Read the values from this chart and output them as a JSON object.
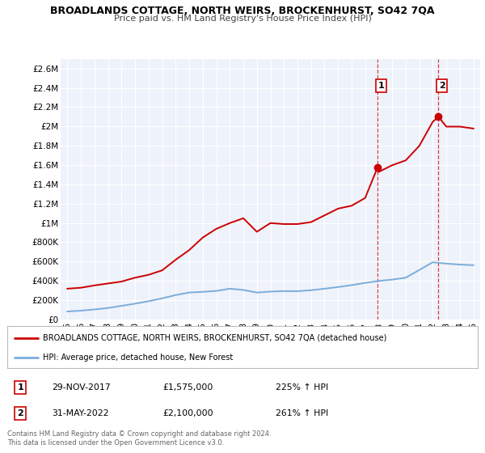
{
  "title": "BROADLANDS COTTAGE, NORTH WEIRS, BROCKENHURST, SO42 7QA",
  "subtitle": "Price paid vs. HM Land Registry's House Price Index (HPI)",
  "xlim": [
    1994.5,
    2025.5
  ],
  "ylim": [
    0,
    2700000
  ],
  "yticks": [
    0,
    200000,
    400000,
    600000,
    800000,
    1000000,
    1200000,
    1400000,
    1600000,
    1800000,
    2000000,
    2200000,
    2400000,
    2600000
  ],
  "ytick_labels": [
    "£0",
    "£200K",
    "£400K",
    "£600K",
    "£800K",
    "£1M",
    "£1.2M",
    "£1.4M",
    "£1.6M",
    "£1.8M",
    "£2M",
    "£2.2M",
    "£2.4M",
    "£2.6M"
  ],
  "marker1_x": 2017.92,
  "marker1_y": 1575000,
  "marker1_label": "1",
  "marker1_date": "29-NOV-2017",
  "marker1_price": "£1,575,000",
  "marker1_pct": "225% ↑ HPI",
  "marker2_x": 2022.42,
  "marker2_y": 2100000,
  "marker2_label": "2",
  "marker2_date": "31-MAY-2022",
  "marker2_price": "£2,100,000",
  "marker2_pct": "261% ↑ HPI",
  "line1_color": "#cc0000",
  "line2_color": "#7aaddb",
  "background_color": "#eef2fa",
  "legend_line1": "BROADLANDS COTTAGE, NORTH WEIRS, BROCKENHURST, SO42 7QA (detached house)",
  "legend_line2": "HPI: Average price, detached house, New Forest",
  "footer1": "Contains HM Land Registry data © Crown copyright and database right 2024.",
  "footer2": "This data is licensed under the Open Government Licence v3.0.",
  "hpi_x": [
    1995,
    1996,
    1997,
    1998,
    1999,
    2000,
    2001,
    2002,
    2003,
    2004,
    2005,
    2006,
    2007,
    2008,
    2009,
    2010,
    2011,
    2012,
    2013,
    2014,
    2015,
    2016,
    2017,
    2018,
    2019,
    2020,
    2021,
    2022,
    2023,
    2024,
    2025
  ],
  "hpi_y": [
    82000,
    90000,
    103000,
    118000,
    140000,
    163000,
    188000,
    218000,
    252000,
    278000,
    285000,
    295000,
    318000,
    305000,
    278000,
    288000,
    293000,
    292000,
    302000,
    318000,
    335000,
    355000,
    378000,
    398000,
    412000,
    432000,
    512000,
    592000,
    578000,
    568000,
    562000
  ],
  "price_x": [
    1995,
    1996,
    1997,
    1998,
    1999,
    2000,
    2001,
    2002,
    2003,
    2004,
    2005,
    2006,
    2007,
    2008,
    2009,
    2010,
    2011,
    2012,
    2013,
    2014,
    2015,
    2016,
    2017,
    2017.92,
    2018,
    2019,
    2020,
    2021,
    2022,
    2022.42,
    2023,
    2024,
    2025
  ],
  "price_y": [
    318000,
    328000,
    352000,
    372000,
    392000,
    432000,
    462000,
    508000,
    618000,
    718000,
    848000,
    938000,
    998000,
    1048000,
    908000,
    998000,
    988000,
    988000,
    1008000,
    1078000,
    1148000,
    1178000,
    1258000,
    1575000,
    1528000,
    1598000,
    1648000,
    1798000,
    2048000,
    2100000,
    1998000,
    1998000,
    1978000
  ]
}
